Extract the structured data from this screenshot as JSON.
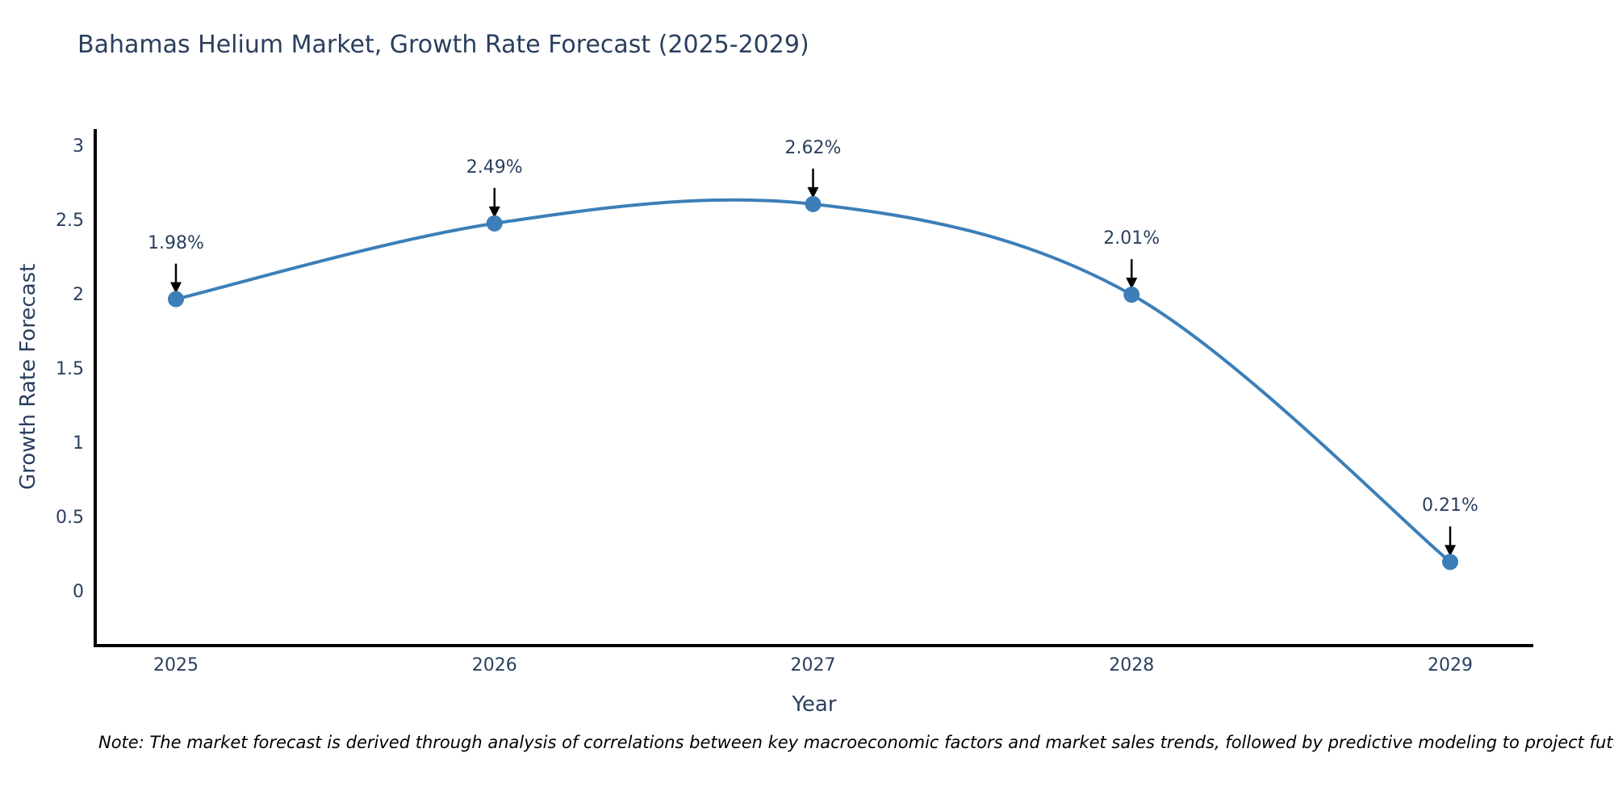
{
  "title": "Bahamas Helium Market, Growth Rate Forecast (2025-2029)",
  "note": "Note: The market forecast is derived through analysis of correlations between key macroeconomic factors and market sales trends, followed by predictive modeling to project future sales",
  "colors": {
    "line": "#3c7fb8",
    "marker": "#3c7fb8",
    "axis": "#000000",
    "text": "#2a3f5f",
    "annotation_arrow": "#000000"
  },
  "chart_data": {
    "type": "line",
    "title": "Bahamas Helium Market, Growth Rate Forecast (2025-2029)",
    "x": [
      "2025",
      "2026",
      "2027",
      "2028",
      "2029"
    ],
    "series": [
      {
        "name": "Growth Rate Forecast",
        "values": [
          1.98,
          2.49,
          2.62,
          2.01,
          0.21
        ]
      }
    ],
    "point_labels": [
      "1.98%",
      "2.49%",
      "2.62%",
      "2.01%",
      "0.21%"
    ],
    "xlabel": "Year",
    "ylabel": "Growth Rate Forecast",
    "ylim": [
      0,
      3
    ],
    "yticks": [
      "3",
      "2.5",
      "2",
      "1.5",
      "1",
      "0.5",
      "0"
    ],
    "ytick_values": [
      3,
      2.5,
      2,
      1.5,
      1,
      0.5,
      0
    ],
    "xticks": [
      "2025",
      "2026",
      "2027",
      "2028",
      "2029"
    ],
    "grid": false,
    "legend": "none",
    "line_shape": "spline",
    "marker": "circle",
    "annotations": "value labels with downward arrows at each point"
  }
}
